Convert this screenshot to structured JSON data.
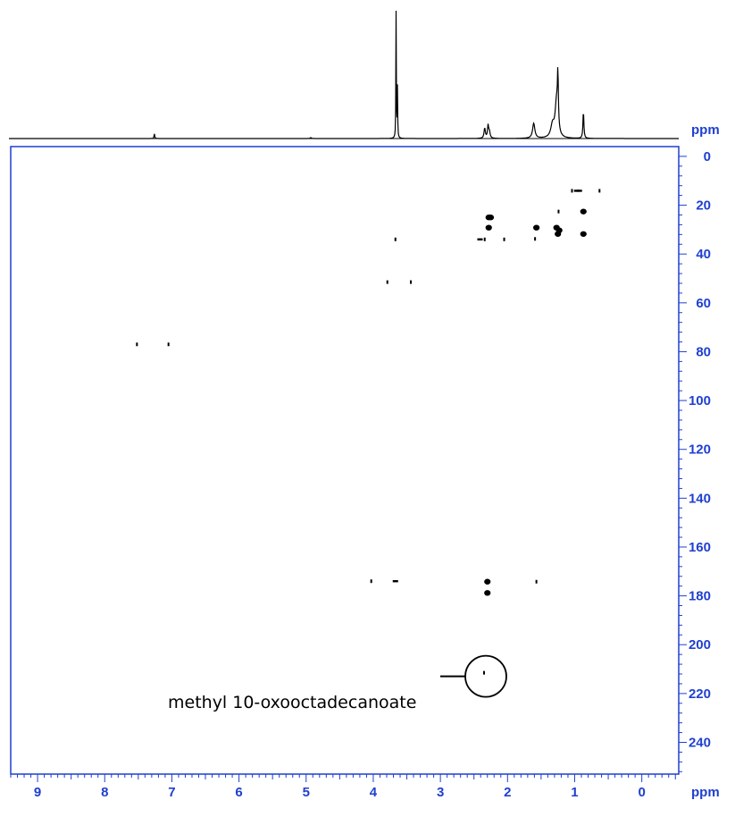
{
  "chart_data": {
    "type": "heatmap",
    "title": "",
    "xlabel": "ppm",
    "ylabel": "ppm",
    "x_axis": {
      "unit": "ppm",
      "reversed": true,
      "range": [
        9.4,
        -0.55
      ],
      "ticks": [
        9,
        8,
        7,
        6,
        5,
        4,
        3,
        2,
        1,
        0
      ]
    },
    "y_axis": {
      "unit": "ppm",
      "reversed": false,
      "range": [
        -4,
        253
      ],
      "ticks": [
        0,
        20,
        40,
        60,
        80,
        100,
        120,
        140,
        160,
        180,
        200,
        220,
        240
      ],
      "position": "right"
    },
    "projection_1d": {
      "axis": "x",
      "peaks": [
        {
          "ppm": 7.26,
          "height": 0.04,
          "width": 0.006
        },
        {
          "ppm": 4.93,
          "height": 0.008,
          "width": 0.01
        },
        {
          "ppm": 3.66,
          "height": 1.0,
          "width": 0.0035
        },
        {
          "ppm": 3.64,
          "height": 0.4,
          "width": 0.004
        },
        {
          "ppm": 2.34,
          "height": 0.08,
          "width": 0.012
        },
        {
          "ppm": 2.29,
          "height": 0.1,
          "width": 0.01
        },
        {
          "ppm": 2.27,
          "height": 0.05,
          "width": 0.012
        },
        {
          "ppm": 1.61,
          "height": 0.12,
          "width": 0.02
        },
        {
          "ppm": 1.33,
          "height": 0.1,
          "width": 0.03
        },
        {
          "ppm": 1.27,
          "height": 0.28,
          "width": 0.025
        },
        {
          "ppm": 1.25,
          "height": 0.4,
          "width": 0.008
        },
        {
          "ppm": 0.87,
          "height": 0.22,
          "width": 0.008
        }
      ]
    },
    "cross_peaks": [
      {
        "x": 0.97,
        "y": 14.1,
        "shape": "dash"
      },
      {
        "x": 0.93,
        "y": 14.1,
        "shape": "dash"
      },
      {
        "x": 1.04,
        "y": 14.1,
        "shape": "dot"
      },
      {
        "x": 0.63,
        "y": 14.1,
        "shape": "dot"
      },
      {
        "x": 0.87,
        "y": 22.6,
        "shape": "blob"
      },
      {
        "x": 1.24,
        "y": 22.6,
        "shape": "dot"
      },
      {
        "x": 2.28,
        "y": 25.0,
        "shape": "blob"
      },
      {
        "x": 2.25,
        "y": 25.0,
        "shape": "blob"
      },
      {
        "x": 2.28,
        "y": 29.2,
        "shape": "blob"
      },
      {
        "x": 1.57,
        "y": 29.2,
        "shape": "blob"
      },
      {
        "x": 1.27,
        "y": 29.2,
        "shape": "blob"
      },
      {
        "x": 1.23,
        "y": 30.3,
        "shape": "blob"
      },
      {
        "x": 1.25,
        "y": 31.8,
        "shape": "blob"
      },
      {
        "x": 0.87,
        "y": 31.8,
        "shape": "blob"
      },
      {
        "x": 1.59,
        "y": 33.8,
        "shape": "dot"
      },
      {
        "x": 2.41,
        "y": 34.0,
        "shape": "dash"
      },
      {
        "x": 2.34,
        "y": 34.0,
        "shape": "dot"
      },
      {
        "x": 2.05,
        "y": 34.0,
        "shape": "dot"
      },
      {
        "x": 3.67,
        "y": 34.0,
        "shape": "dot"
      },
      {
        "x": 3.79,
        "y": 51.5,
        "shape": "dot"
      },
      {
        "x": 3.44,
        "y": 51.5,
        "shape": "dot"
      },
      {
        "x": 7.52,
        "y": 77.0,
        "shape": "dot"
      },
      {
        "x": 7.05,
        "y": 77.0,
        "shape": "dot"
      },
      {
        "x": 4.03,
        "y": 174.0,
        "shape": "dot"
      },
      {
        "x": 3.67,
        "y": 174.0,
        "shape": "dash"
      },
      {
        "x": 2.3,
        "y": 174.2,
        "shape": "blob"
      },
      {
        "x": 2.3,
        "y": 178.8,
        "shape": "blob"
      },
      {
        "x": 1.57,
        "y": 174.2,
        "shape": "dot"
      },
      {
        "x": 2.35,
        "y": 211.5,
        "shape": "dot"
      }
    ],
    "annotations": [
      {
        "text": "methyl 10-oxooctadecanoate",
        "x": 2.35,
        "y": 211.5,
        "marker": "circle"
      }
    ],
    "colors": {
      "frame": "#1f3fd0",
      "data": "#000000",
      "axis_text": "#1f3fd0"
    }
  }
}
